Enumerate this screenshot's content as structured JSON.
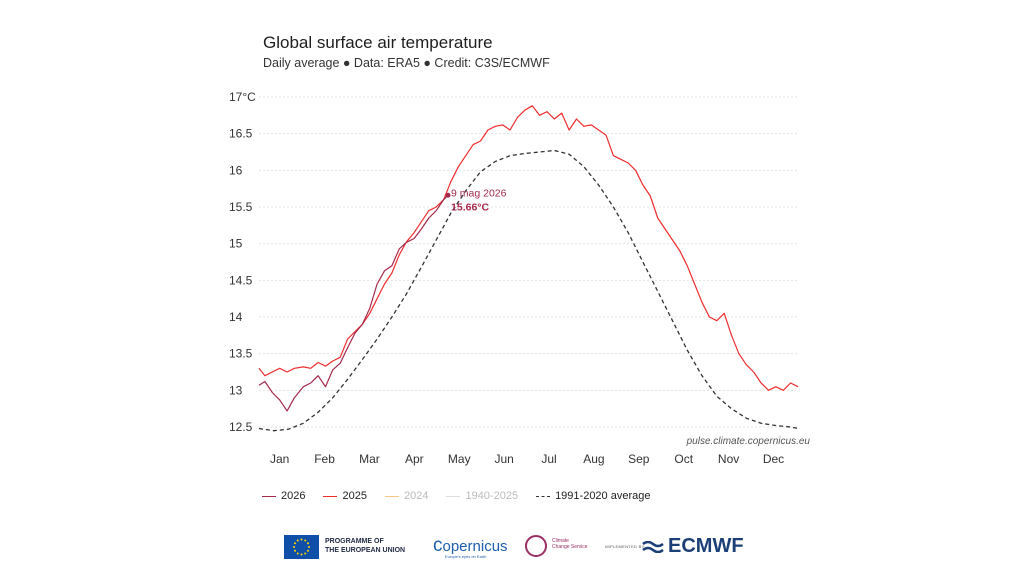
{
  "colors": {
    "y2026": "#a52a4a",
    "y2025": "#ee2d2d",
    "y2024": "#f6c48f",
    "range": "#cccccc",
    "avg": "#333333",
    "eu_flag": "#0f4fa8",
    "ecmwf": "#1b3f76"
  },
  "chart_data": {
    "type": "line",
    "title": "Global surface air temperature",
    "subtitle": "Daily average ● Data: ERA5 ● Credit: C3S/ECMWF",
    "ylim": [
      12.5,
      17
    ],
    "yticks": [
      "12.5",
      "13",
      "13.5",
      "14",
      "14.5",
      "15",
      "15.5",
      "16",
      "16.5",
      "17°C"
    ],
    "ytick_values": [
      12.5,
      13,
      13.5,
      14,
      14.5,
      15,
      15.5,
      16,
      16.5,
      17
    ],
    "months": [
      "Jan",
      "Feb",
      "Mar",
      "Apr",
      "May",
      "Jun",
      "Jul",
      "Aug",
      "Sep",
      "Oct",
      "Nov",
      "Dec"
    ],
    "xlim": [
      1,
      366
    ],
    "grid": true,
    "watermark": "pulse.climate.copernicus.eu",
    "annotation": {
      "date": "9 mag 2026",
      "value": "15.66°C",
      "day": 129,
      "temp": 15.66
    },
    "series": [
      {
        "name": "2026",
        "x": [
          1,
          5,
          10,
          15,
          20,
          25,
          31,
          36,
          41,
          46,
          51,
          56,
          61,
          66,
          71,
          76,
          81,
          86,
          91,
          96,
          101,
          106,
          111,
          116,
          121,
          126,
          129
        ],
        "y": [
          13.07,
          13.12,
          12.97,
          12.87,
          12.72,
          12.9,
          13.05,
          13.1,
          13.2,
          13.05,
          13.28,
          13.37,
          13.58,
          13.78,
          13.9,
          14.12,
          14.45,
          14.63,
          14.7,
          14.93,
          15.02,
          15.07,
          15.2,
          15.35,
          15.45,
          15.6,
          15.66
        ]
      },
      {
        "name": "2025",
        "x": [
          1,
          5,
          10,
          15,
          20,
          25,
          31,
          36,
          41,
          46,
          51,
          56,
          61,
          66,
          71,
          76,
          81,
          86,
          91,
          96,
          101,
          106,
          111,
          116,
          121,
          126,
          131,
          136,
          141,
          146,
          151,
          156,
          161,
          166,
          171,
          176,
          181,
          186,
          191,
          196,
          201,
          206,
          211,
          216,
          221,
          226,
          231,
          236,
          241,
          246,
          251,
          256,
          261,
          266,
          271,
          276,
          281,
          286,
          291,
          296,
          301,
          306,
          311,
          316,
          321,
          326,
          331,
          336,
          341,
          346,
          351,
          356,
          361,
          366
        ],
        "y": [
          13.3,
          13.2,
          13.25,
          13.3,
          13.25,
          13.3,
          13.32,
          13.3,
          13.38,
          13.33,
          13.4,
          13.45,
          13.7,
          13.8,
          13.9,
          14.05,
          14.25,
          14.45,
          14.6,
          14.85,
          15.03,
          15.15,
          15.3,
          15.45,
          15.5,
          15.6,
          15.85,
          16.05,
          16.2,
          16.35,
          16.4,
          16.55,
          16.6,
          16.62,
          16.55,
          16.72,
          16.82,
          16.88,
          16.75,
          16.8,
          16.7,
          16.78,
          16.55,
          16.7,
          16.6,
          16.62,
          16.55,
          16.48,
          16.2,
          16.15,
          16.1,
          16.0,
          15.8,
          15.65,
          15.35,
          15.2,
          15.05,
          14.9,
          14.7,
          14.45,
          14.2,
          14.0,
          13.95,
          14.05,
          13.75,
          13.5,
          13.35,
          13.25,
          13.1,
          13.0,
          13.05,
          13.0,
          13.1,
          13.05
        ]
      },
      {
        "name": "2024",
        "x": [],
        "y": []
      },
      {
        "name": "1940-2025",
        "x": [],
        "y": []
      },
      {
        "name": "1991-2020 average",
        "x": [
          1,
          11,
          21,
          31,
          41,
          51,
          61,
          71,
          81,
          91,
          101,
          111,
          121,
          131,
          141,
          151,
          161,
          171,
          181,
          191,
          201,
          211,
          221,
          231,
          241,
          251,
          261,
          271,
          281,
          291,
          301,
          311,
          321,
          331,
          341,
          351,
          361,
          366
        ],
        "y": [
          12.48,
          12.45,
          12.47,
          12.55,
          12.7,
          12.9,
          13.15,
          13.42,
          13.7,
          14.0,
          14.32,
          14.68,
          15.05,
          15.42,
          15.72,
          15.98,
          16.12,
          16.2,
          16.23,
          16.25,
          16.27,
          16.22,
          16.05,
          15.8,
          15.5,
          15.15,
          14.75,
          14.35,
          13.95,
          13.55,
          13.2,
          12.92,
          12.75,
          12.62,
          12.55,
          12.52,
          12.5,
          12.48
        ]
      }
    ]
  },
  "legend": {
    "items": [
      "2026",
      "2025",
      "2024",
      "1940-2025",
      "1991-2020 average"
    ]
  },
  "footer": {
    "eu_line1": "PROGRAMME OF",
    "eu_line2": "THE EUROPEAN UNION",
    "copernicus": "opernicus",
    "copernicus_sub": "Europe's eyes on Earth",
    "c3s_line1": "Climate",
    "c3s_line2": "Change Service",
    "implemented": "IMPLEMENTED BY",
    "ecmwf": "ECMWF"
  }
}
